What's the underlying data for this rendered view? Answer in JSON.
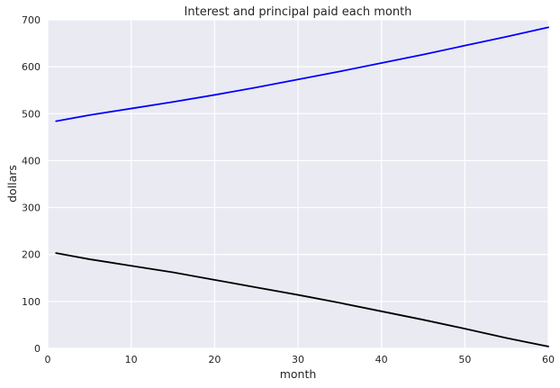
{
  "chart_data": {
    "type": "line",
    "title": "Interest and principal paid each month",
    "xlabel": "month",
    "ylabel": "dollars",
    "xlim": [
      0,
      60
    ],
    "ylim": [
      0,
      700
    ],
    "xticks": [
      0,
      10,
      20,
      30,
      40,
      50,
      60
    ],
    "yticks": [
      0,
      100,
      200,
      300,
      400,
      500,
      600,
      700
    ],
    "grid": true,
    "colors": {
      "background": "#eaeaf2",
      "grid": "#ffffff"
    },
    "series": [
      {
        "color": "#0000ff",
        "x": [
          1,
          5,
          10,
          15,
          20,
          25,
          30,
          35,
          40,
          45,
          50,
          55,
          60
        ],
        "y": [
          484,
          497,
          511,
          525,
          540,
          556,
          573,
          590,
          608,
          626,
          645,
          664,
          684
        ]
      },
      {
        "color": "#000000",
        "x": [
          1,
          5,
          10,
          15,
          20,
          25,
          30,
          35,
          40,
          45,
          50,
          55,
          60
        ],
        "y": [
          203,
          190,
          176,
          162,
          146,
          130,
          114,
          97,
          79,
          61,
          42,
          22,
          4
        ]
      }
    ]
  }
}
